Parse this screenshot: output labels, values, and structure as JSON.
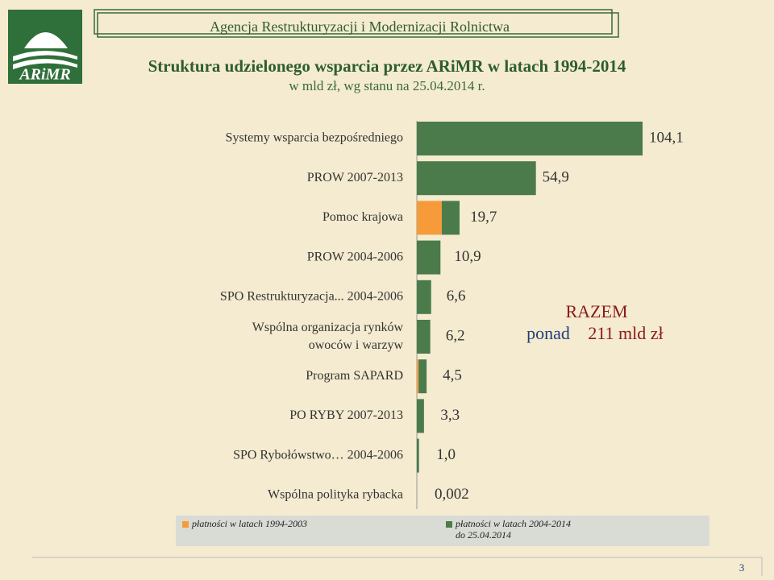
{
  "header": {
    "agency": "Agencja Restrukturyzacji i Modernizacji Rolnictwa",
    "logo": "ARiMR",
    "page_number": "3"
  },
  "chart_data": {
    "type": "bar",
    "title": "Struktura udzielonego wsparcia przez ARiMR w latach 1994-2014",
    "subtitle": "w mld zł, wg stanu na 25.04.2014 r.",
    "orientation": "horizontal",
    "categories": [
      "Systemy wsparcia bezpośredniego",
      "PROW 2007-2013",
      "Pomoc krajowa",
      "PROW 2004-2006",
      "SPO Restrukturyzacja... 2004-2006",
      "Wspólna organizacja rynków\nowoców i warzyw",
      "Program SAPARD",
      "PO RYBY 2007-2013",
      "SPO Rybołówstwo… 2004-2006",
      "Wspólna polityka rybacka"
    ],
    "series": [
      {
        "name": "płatności w latach 1994-2003",
        "color": "#f79a3a",
        "values": [
          0,
          0,
          11.5,
          0,
          0,
          0,
          0.8,
          0,
          0,
          0
        ]
      },
      {
        "name": "płatności w latach 2004-2014\ndo 25.04.2014",
        "color": "#4b7b4b",
        "values": [
          104.1,
          54.9,
          8.2,
          10.9,
          6.6,
          6.2,
          3.7,
          3.3,
          1.0,
          0.002
        ]
      }
    ],
    "totals": [
      104.1,
      54.9,
      19.7,
      10.9,
      6.6,
      6.2,
      4.5,
      3.3,
      1.0,
      0.002
    ],
    "total_labels": [
      "104,1",
      "54,9",
      "19,7",
      "10,9",
      "6,6",
      "6,2",
      "4,5",
      "3,3",
      "1,0",
      "0,002"
    ],
    "xlim": [
      0,
      104.1
    ],
    "annotation": {
      "line1": "RAZEM",
      "line2a": "ponad",
      "line2b": "211 mld zł"
    }
  }
}
